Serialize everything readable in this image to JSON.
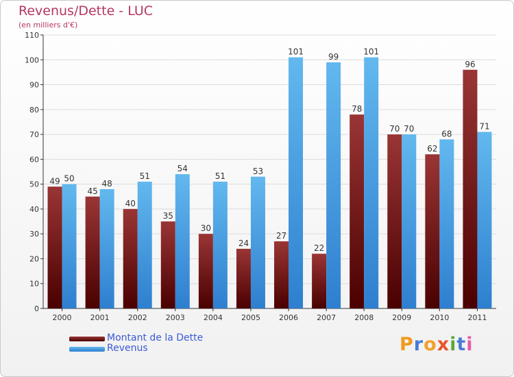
{
  "chart_data": {
    "type": "bar",
    "title": "Revenus/Dette - LUC",
    "subtitle": "(en milliers d'€)",
    "categories": [
      "2000",
      "2001",
      "2002",
      "2003",
      "2004",
      "2005",
      "2006",
      "2007",
      "2008",
      "2009",
      "2010",
      "2011"
    ],
    "series": [
      {
        "name": "Montant de la Dette",
        "values": [
          49,
          45,
          40,
          35,
          30,
          24,
          27,
          22,
          78,
          70,
          62,
          96
        ],
        "color": "#7a1e1e"
      },
      {
        "name": "Revenus",
        "values": [
          50,
          48,
          51,
          54,
          51,
          53,
          101,
          99,
          101,
          70,
          68,
          71
        ],
        "color": "#4ea7e6"
      }
    ],
    "ylim": [
      0,
      110
    ],
    "yticks": [
      0,
      10,
      20,
      30,
      40,
      50,
      60,
      70,
      80,
      90,
      100,
      110
    ],
    "grid": true,
    "legend_position": "bottom-left"
  },
  "colors": {
    "title": "#b5365e",
    "legend_text": "#3a5bd6",
    "dette_dark": "#4a0000",
    "dette_light": "#9a3535",
    "revenus_dark": "#2e7fcf",
    "revenus_light": "#62b8ee"
  },
  "logo": {
    "letters": [
      "P",
      "r",
      "o",
      "x",
      "i",
      "t",
      "i"
    ],
    "colors": [
      "#f29a1e",
      "#4a7ad6",
      "#f2a12a",
      "#e8542a",
      "#5aa83a",
      "#4a7ad6",
      "#e85aa6"
    ]
  }
}
